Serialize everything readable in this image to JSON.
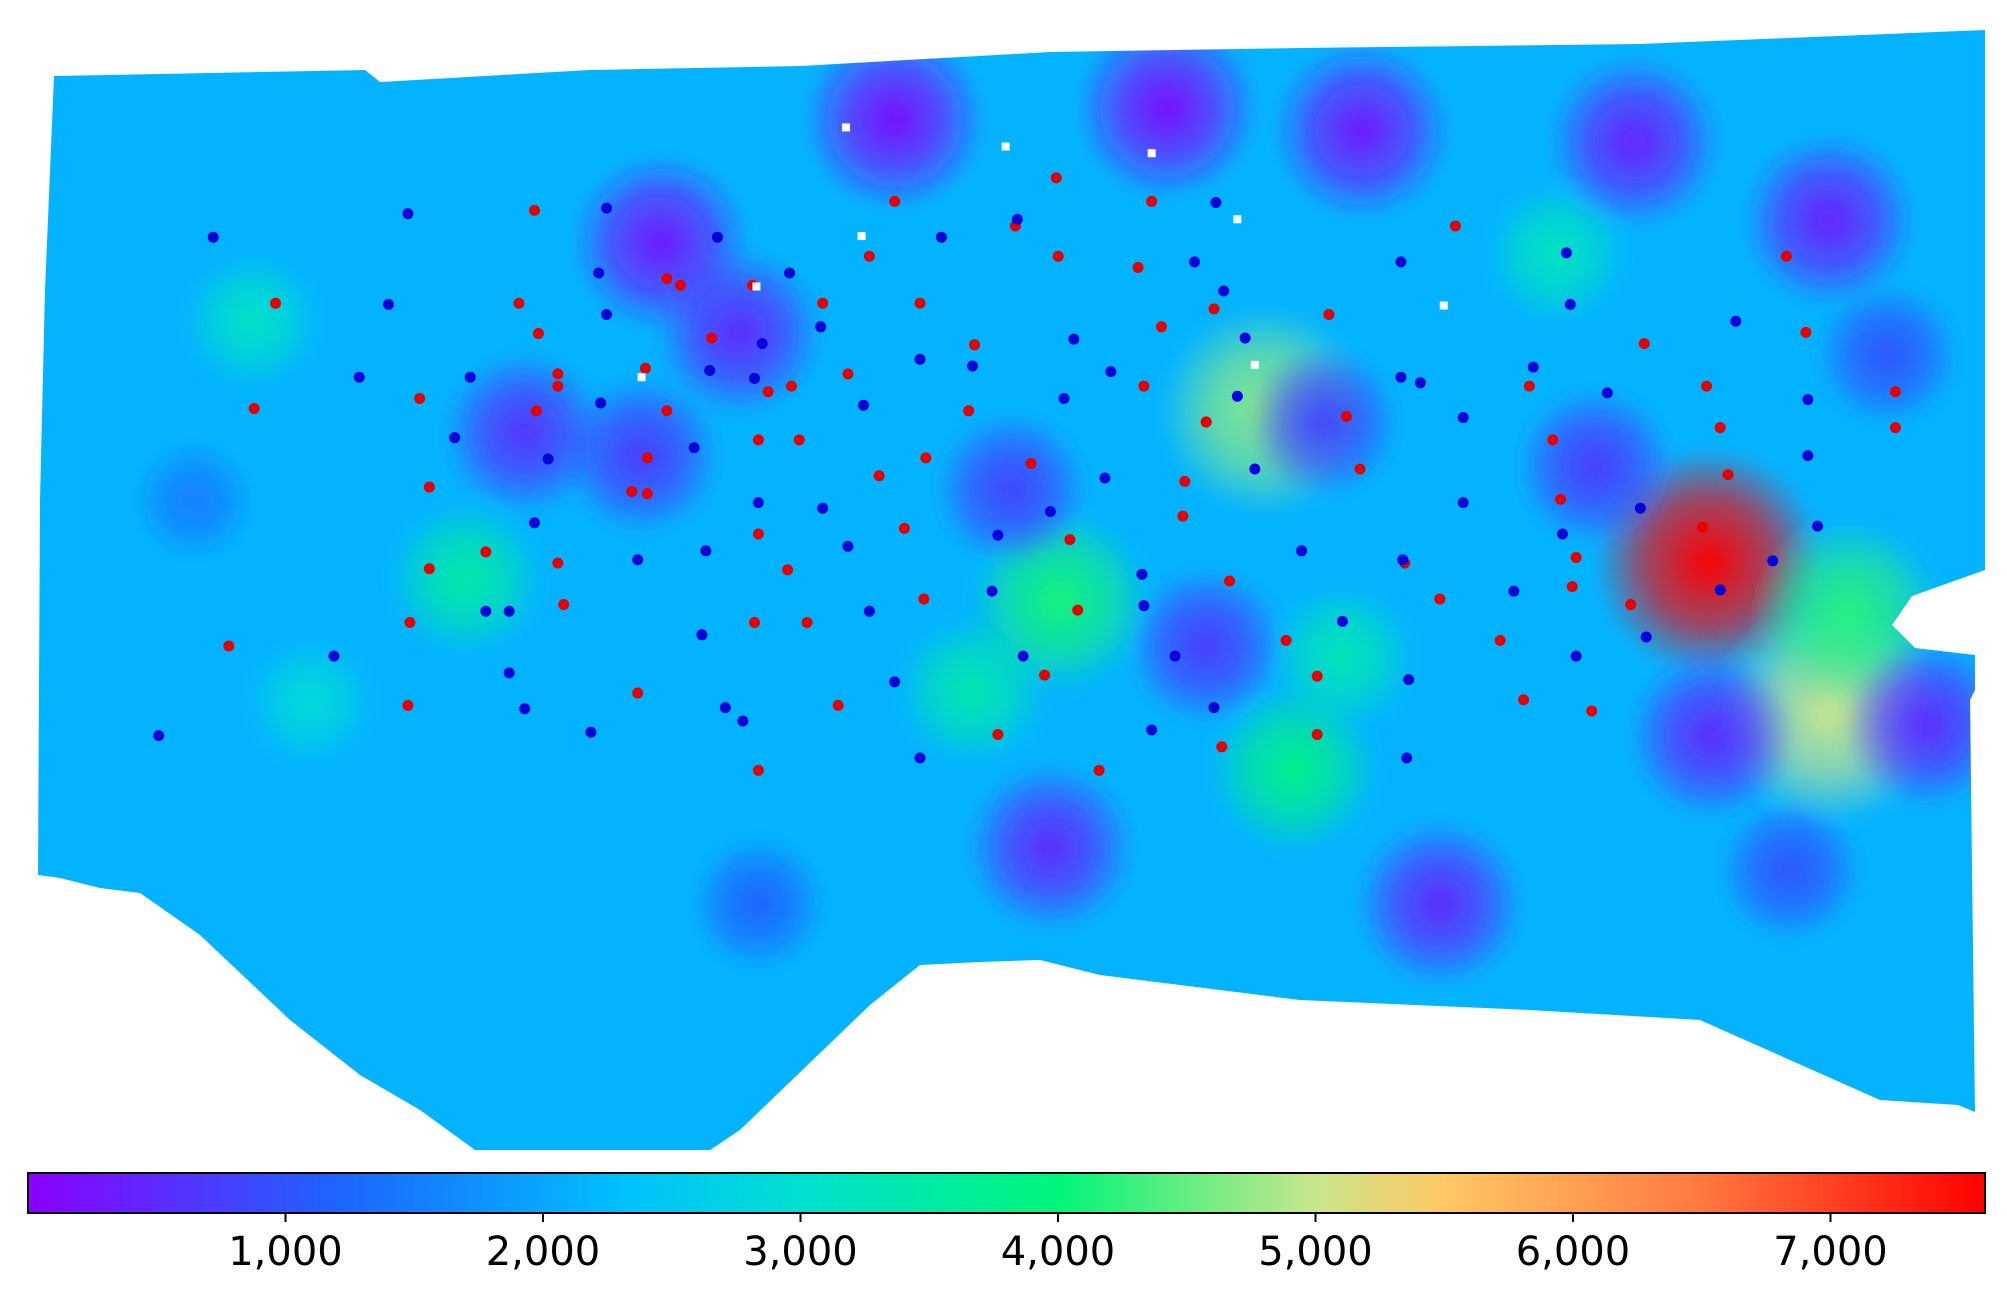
{
  "chart_data": {
    "type": "heatmap",
    "title": "",
    "xlabel": "",
    "ylabel": "",
    "colorbar": {
      "orientation": "horizontal",
      "position": "bottom",
      "range": [
        0,
        7600
      ],
      "ticks": [
        1000,
        2000,
        3000,
        4000,
        5000,
        6000,
        7000
      ],
      "tick_labels": [
        "1,000",
        "2,000",
        "3,000",
        "4,000",
        "5,000",
        "6,000",
        "7,000"
      ],
      "colormap_stops": [
        {
          "value": 0,
          "color": "#8b00ff"
        },
        {
          "value": 1200,
          "color": "#1e64ff"
        },
        {
          "value": 2300,
          "color": "#00bfff"
        },
        {
          "value": 3000,
          "color": "#00e0d0"
        },
        {
          "value": 4000,
          "color": "#00f57a"
        },
        {
          "value": 5000,
          "color": "#c8e68c"
        },
        {
          "value": 5500,
          "color": "#ffc864"
        },
        {
          "value": 6500,
          "color": "#ff7840"
        },
        {
          "value": 7600,
          "color": "#ff0000"
        }
      ]
    },
    "background_level": 2150,
    "hotspots": [
      {
        "x": 0.11,
        "y": 0.26,
        "value": 3100
      },
      {
        "x": 0.63,
        "y": 0.34,
        "value": 4700
      },
      {
        "x": 0.858,
        "y": 0.475,
        "value": 7600
      },
      {
        "x": 0.92,
        "y": 0.61,
        "value": 5000
      },
      {
        "x": 0.93,
        "y": 0.52,
        "value": 4200
      },
      {
        "x": 0.525,
        "y": 0.51,
        "value": 4100
      },
      {
        "x": 0.22,
        "y": 0.49,
        "value": 3500
      },
      {
        "x": 0.645,
        "y": 0.66,
        "value": 3800
      },
      {
        "x": 0.48,
        "y": 0.59,
        "value": 3400
      },
      {
        "x": 0.78,
        "y": 0.2,
        "value": 3200
      },
      {
        "x": 0.14,
        "y": 0.6,
        "value": 2900
      },
      {
        "x": 0.67,
        "y": 0.56,
        "value": 3300
      },
      {
        "x": 0.32,
        "y": 0.19,
        "value": 300
      },
      {
        "x": 0.44,
        "y": 0.08,
        "value": 200
      },
      {
        "x": 0.58,
        "y": 0.07,
        "value": 200
      },
      {
        "x": 0.68,
        "y": 0.09,
        "value": 300
      },
      {
        "x": 0.82,
        "y": 0.1,
        "value": 400
      },
      {
        "x": 0.92,
        "y": 0.17,
        "value": 400
      },
      {
        "x": 0.25,
        "y": 0.36,
        "value": 600
      },
      {
        "x": 0.31,
        "y": 0.38,
        "value": 700
      },
      {
        "x": 0.5,
        "y": 0.41,
        "value": 800
      },
      {
        "x": 0.6,
        "y": 0.55,
        "value": 700
      },
      {
        "x": 0.52,
        "y": 0.73,
        "value": 500
      },
      {
        "x": 0.72,
        "y": 0.78,
        "value": 500
      },
      {
        "x": 0.8,
        "y": 0.39,
        "value": 700
      },
      {
        "x": 0.86,
        "y": 0.63,
        "value": 500
      },
      {
        "x": 0.97,
        "y": 0.62,
        "value": 500
      },
      {
        "x": 0.36,
        "y": 0.27,
        "value": 500
      },
      {
        "x": 0.66,
        "y": 0.35,
        "value": 800
      },
      {
        "x": 0.9,
        "y": 0.75,
        "value": 1000
      },
      {
        "x": 0.37,
        "y": 0.78,
        "value": 1200
      },
      {
        "x": 0.95,
        "y": 0.29,
        "value": 1000
      },
      {
        "x": 0.08,
        "y": 0.42,
        "value": 1500
      }
    ],
    "series": [
      {
        "color": "#e60000",
        "points": [
          [
            0.255,
            0.161
          ],
          [
            0.44,
            0.153
          ],
          [
            0.523,
            0.132
          ],
          [
            0.572,
            0.153
          ],
          [
            0.728,
            0.175
          ],
          [
            0.122,
            0.244
          ],
          [
            0.111,
            0.338
          ],
          [
            0.247,
            0.244
          ],
          [
            0.323,
            0.222
          ],
          [
            0.33,
            0.228
          ],
          [
            0.367,
            0.228
          ],
          [
            0.403,
            0.244
          ],
          [
            0.427,
            0.202
          ],
          [
            0.453,
            0.244
          ],
          [
            0.502,
            0.175
          ],
          [
            0.524,
            0.202
          ],
          [
            0.565,
            0.212
          ],
          [
            0.577,
            0.265
          ],
          [
            0.604,
            0.249
          ],
          [
            0.663,
            0.254
          ],
          [
            0.898,
            0.202
          ],
          [
            0.908,
            0.27
          ],
          [
            0.954,
            0.323
          ],
          [
            0.954,
            0.355
          ],
          [
            0.196,
            0.329
          ],
          [
            0.267,
            0.307
          ],
          [
            0.267,
            0.318
          ],
          [
            0.312,
            0.302
          ],
          [
            0.346,
            0.275
          ],
          [
            0.375,
            0.323
          ],
          [
            0.387,
            0.318
          ],
          [
            0.416,
            0.307
          ],
          [
            0.481,
            0.281
          ],
          [
            0.568,
            0.318
          ],
          [
            0.6,
            0.35
          ],
          [
            0.672,
            0.345
          ],
          [
            0.766,
            0.318
          ],
          [
            0.825,
            0.28
          ],
          [
            0.857,
            0.318
          ],
          [
            0.864,
            0.355
          ],
          [
            0.868,
            0.397
          ],
          [
            0.256,
            0.34
          ],
          [
            0.323,
            0.34
          ],
          [
            0.201,
            0.408
          ],
          [
            0.313,
            0.382
          ],
          [
            0.37,
            0.366
          ],
          [
            0.391,
            0.366
          ],
          [
            0.313,
            0.414
          ],
          [
            0.456,
            0.382
          ],
          [
            0.51,
            0.387
          ],
          [
            0.432,
            0.398
          ],
          [
            0.478,
            0.34
          ],
          [
            0.6,
            0.35
          ],
          [
            0.679,
            0.392
          ],
          [
            0.778,
            0.366
          ],
          [
            0.782,
            0.419
          ],
          [
            0.855,
            0.444
          ],
          [
            0.23,
            0.466
          ],
          [
            0.267,
            0.476
          ],
          [
            0.37,
            0.45
          ],
          [
            0.445,
            0.445
          ],
          [
            0.53,
            0.455
          ],
          [
            0.589,
            0.403
          ],
          [
            0.588,
            0.434
          ],
          [
            0.201,
            0.481
          ],
          [
            0.27,
            0.513
          ],
          [
            0.191,
            0.529
          ],
          [
            0.385,
            0.482
          ],
          [
            0.455,
            0.508
          ],
          [
            0.534,
            0.518
          ],
          [
            0.612,
            0.492
          ],
          [
            0.702,
            0.476
          ],
          [
            0.72,
            0.508
          ],
          [
            0.79,
            0.471
          ],
          [
            0.788,
            0.497
          ],
          [
            0.818,
            0.513
          ],
          [
            0.098,
            0.55
          ],
          [
            0.19,
            0.603
          ],
          [
            0.308,
            0.592
          ],
          [
            0.368,
            0.529
          ],
          [
            0.395,
            0.529
          ],
          [
            0.411,
            0.603
          ],
          [
            0.517,
            0.576
          ],
          [
            0.641,
            0.545
          ],
          [
            0.657,
            0.577
          ],
          [
            0.751,
            0.545
          ],
          [
            0.763,
            0.598
          ],
          [
            0.798,
            0.608
          ],
          [
            0.37,
            0.661
          ],
          [
            0.493,
            0.629
          ],
          [
            0.545,
            0.661
          ],
          [
            0.608,
            0.64
          ],
          [
            0.657,
            0.629
          ],
          [
            0.305,
            0.412
          ],
          [
            0.257,
            0.271
          ]
        ]
      },
      {
        "color": "#0000dc",
        "points": [
          [
            0.09,
            0.185
          ],
          [
            0.19,
            0.164
          ],
          [
            0.292,
            0.159
          ],
          [
            0.349,
            0.185
          ],
          [
            0.288,
            0.217
          ],
          [
            0.18,
            0.245
          ],
          [
            0.292,
            0.254
          ],
          [
            0.386,
            0.217
          ],
          [
            0.402,
            0.265
          ],
          [
            0.464,
            0.185
          ],
          [
            0.503,
            0.169
          ],
          [
            0.605,
            0.154
          ],
          [
            0.594,
            0.207
          ],
          [
            0.609,
            0.233
          ],
          [
            0.7,
            0.207
          ],
          [
            0.785,
            0.199
          ],
          [
            0.787,
            0.245
          ],
          [
            0.872,
            0.26
          ],
          [
            0.165,
            0.31
          ],
          [
            0.222,
            0.31
          ],
          [
            0.289,
            0.333
          ],
          [
            0.345,
            0.304
          ],
          [
            0.424,
            0.335
          ],
          [
            0.453,
            0.294
          ],
          [
            0.532,
            0.276
          ],
          [
            0.527,
            0.329
          ],
          [
            0.616,
            0.327
          ],
          [
            0.7,
            0.31
          ],
          [
            0.732,
            0.346
          ],
          [
            0.806,
            0.324
          ],
          [
            0.909,
            0.33
          ],
          [
            0.214,
            0.364
          ],
          [
            0.262,
            0.383
          ],
          [
            0.337,
            0.373
          ],
          [
            0.37,
            0.422
          ],
          [
            0.403,
            0.427
          ],
          [
            0.548,
            0.4
          ],
          [
            0.625,
            0.392
          ],
          [
            0.732,
            0.422
          ],
          [
            0.823,
            0.427
          ],
          [
            0.909,
            0.38
          ],
          [
            0.255,
            0.44
          ],
          [
            0.308,
            0.473
          ],
          [
            0.343,
            0.465
          ],
          [
            0.416,
            0.461
          ],
          [
            0.493,
            0.451
          ],
          [
            0.567,
            0.486
          ],
          [
            0.649,
            0.465
          ],
          [
            0.701,
            0.473
          ],
          [
            0.783,
            0.45
          ],
          [
            0.914,
            0.443
          ],
          [
            0.23,
            0.519
          ],
          [
            0.242,
            0.519
          ],
          [
            0.341,
            0.54
          ],
          [
            0.427,
            0.519
          ],
          [
            0.49,
            0.501
          ],
          [
            0.568,
            0.514
          ],
          [
            0.67,
            0.528
          ],
          [
            0.758,
            0.501
          ],
          [
            0.864,
            0.5
          ],
          [
            0.891,
            0.474
          ],
          [
            0.152,
            0.559
          ],
          [
            0.242,
            0.574
          ],
          [
            0.353,
            0.605
          ],
          [
            0.44,
            0.582
          ],
          [
            0.506,
            0.559
          ],
          [
            0.584,
            0.559
          ],
          [
            0.704,
            0.58
          ],
          [
            0.79,
            0.559
          ],
          [
            0.826,
            0.542
          ],
          [
            0.062,
            0.63
          ],
          [
            0.25,
            0.606
          ],
          [
            0.284,
            0.627
          ],
          [
            0.362,
            0.617
          ],
          [
            0.453,
            0.65
          ],
          [
            0.572,
            0.625
          ],
          [
            0.604,
            0.605
          ],
          [
            0.703,
            0.65
          ],
          [
            0.368,
            0.311
          ],
          [
            0.372,
            0.28
          ],
          [
            0.48,
            0.3
          ],
          [
            0.551,
            0.305
          ],
          [
            0.62,
            0.275
          ],
          [
            0.71,
            0.315
          ],
          [
            0.768,
            0.301
          ],
          [
            0.52,
            0.43
          ]
        ]
      },
      {
        "color": "#ffffff",
        "points": [
          [
            0.415,
            0.087
          ],
          [
            0.497,
            0.104
          ],
          [
            0.572,
            0.11
          ],
          [
            0.423,
            0.184
          ],
          [
            0.616,
            0.169
          ],
          [
            0.369,
            0.229
          ],
          [
            0.722,
            0.246
          ],
          [
            0.625,
            0.299
          ],
          [
            0.31,
            0.31
          ]
        ]
      }
    ]
  }
}
